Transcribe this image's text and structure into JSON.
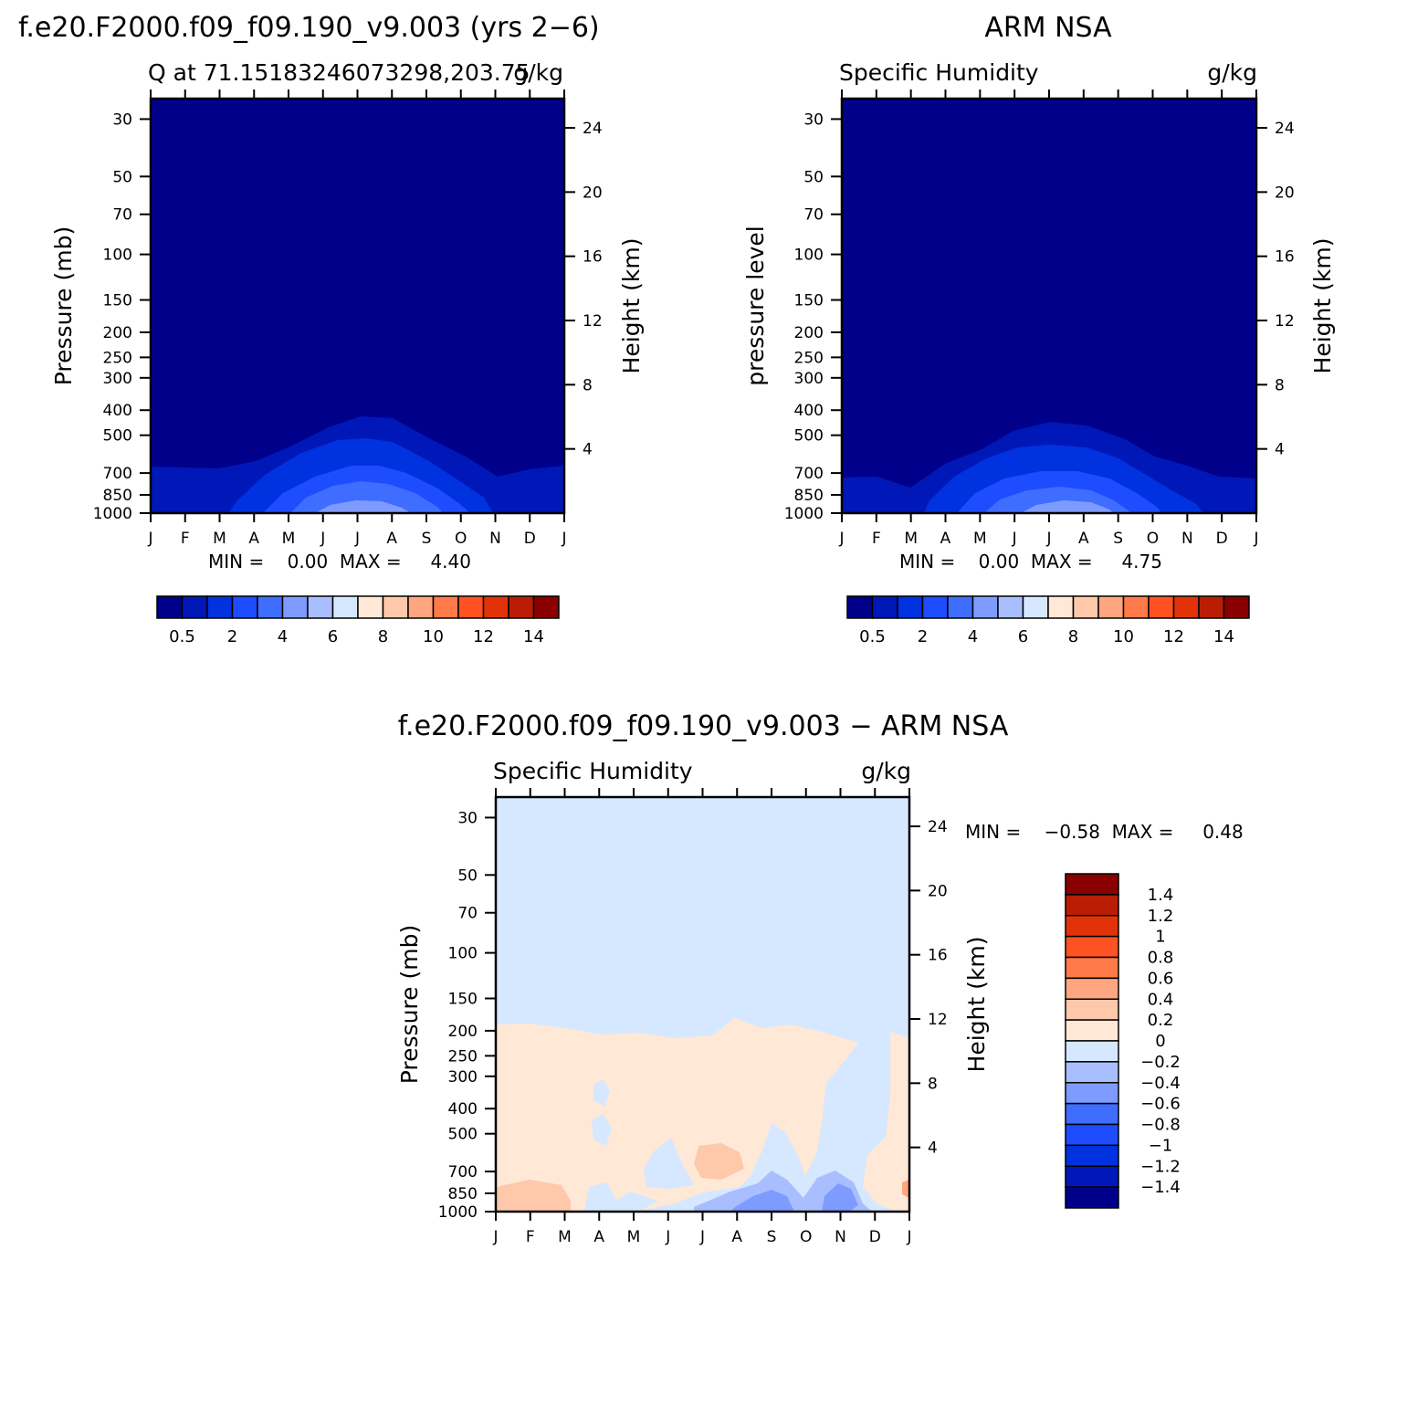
{
  "charts": [
    {
      "id": "model",
      "title": "f.e20.F2000.f09_f09.190_v9.003 (yrs 2−6)",
      "left_label": "Q at 71.15183246073298,203.75",
      "right_label": "g/kg",
      "ylabel": "Pressure (mb)",
      "y2label": "Height (km)",
      "stats_text": "MIN =    0.00  MAX =     4.40"
    },
    {
      "id": "obs",
      "title": "ARM NSA",
      "left_label": "Specific Humidity",
      "right_label": "g/kg",
      "ylabel": "pressure level",
      "y2label": "Height (km)",
      "stats_text": "MIN =    0.00  MAX =     4.75"
    },
    {
      "id": "diff",
      "title": "f.e20.F2000.f09_f09.190_v9.003 − ARM NSA",
      "left_label": "Specific Humidity",
      "right_label": "g/kg",
      "ylabel": "Pressure (mb)",
      "y2label": "Height (km)",
      "stats_text": "MIN =    −0.58  MAX =     0.48"
    }
  ],
  "chart_data": [
    {
      "type": "heatmap",
      "x_tick_labels": [
        "J",
        "F",
        "M",
        "A",
        "M",
        "J",
        "J",
        "A",
        "S",
        "O",
        "N",
        "D",
        "J"
      ],
      "y_ticks": [
        30,
        50,
        70,
        100,
        150,
        200,
        250,
        300,
        400,
        500,
        700,
        850,
        1000
      ],
      "y2_ticks": [
        4,
        8,
        12,
        16,
        20,
        24
      ],
      "y_scale": "log",
      "ylim": [
        1000,
        25
      ],
      "y2lim": [
        0,
        25
      ],
      "value_min": 0.0,
      "value_max": 4.4,
      "contour_levels": [
        0.5,
        1,
        2,
        3,
        4,
        5,
        6,
        7,
        8,
        9,
        10,
        11,
        12,
        13,
        14
      ],
      "colorbar_labels": [
        "0.5",
        "2",
        "4",
        "6",
        "8",
        "10",
        "12",
        "14"
      ],
      "colorbar_colors": [
        "#00008a",
        "#0018b8",
        "#0032e0",
        "#1e4cff",
        "#3f6dff",
        "#7e9bff",
        "#a9beff",
        "#d5e8ff",
        "#ffe8d6",
        "#ffc8aa",
        "#ffa57f",
        "#ff7a48",
        "#ff5222",
        "#e23308",
        "#bb1d04",
        "#8a0000"
      ]
    },
    {
      "type": "heatmap",
      "x_tick_labels": [
        "J",
        "F",
        "M",
        "A",
        "M",
        "J",
        "J",
        "A",
        "S",
        "O",
        "N",
        "D",
        "J"
      ],
      "y_ticks": [
        30,
        50,
        70,
        100,
        150,
        200,
        250,
        300,
        400,
        500,
        700,
        850,
        1000
      ],
      "y2_ticks": [
        4,
        8,
        12,
        16,
        20,
        24
      ],
      "y_scale": "log",
      "ylim": [
        1000,
        25
      ],
      "y2lim": [
        0,
        25
      ],
      "value_min": 0.0,
      "value_max": 4.75,
      "contour_levels": [
        0.5,
        1,
        2,
        3,
        4,
        5,
        6,
        7,
        8,
        9,
        10,
        11,
        12,
        13,
        14
      ],
      "colorbar_labels": [
        "0.5",
        "2",
        "4",
        "6",
        "8",
        "10",
        "12",
        "14"
      ],
      "colorbar_colors": [
        "#00008a",
        "#0018b8",
        "#0032e0",
        "#1e4cff",
        "#3f6dff",
        "#7e9bff",
        "#a9beff",
        "#d5e8ff",
        "#ffe8d6",
        "#ffc8aa",
        "#ffa57f",
        "#ff7a48",
        "#ff5222",
        "#e23308",
        "#bb1d04",
        "#8a0000"
      ]
    },
    {
      "type": "heatmap",
      "x_tick_labels": [
        "J",
        "F",
        "M",
        "A",
        "M",
        "J",
        "J",
        "A",
        "S",
        "O",
        "N",
        "D",
        "J"
      ],
      "y_ticks": [
        30,
        50,
        70,
        100,
        150,
        200,
        250,
        300,
        400,
        500,
        700,
        850,
        1000
      ],
      "y2_ticks": [
        4,
        8,
        12,
        16,
        20,
        24
      ],
      "y_scale": "log",
      "ylim": [
        1000,
        25
      ],
      "y2lim": [
        0,
        25
      ],
      "value_min": -0.58,
      "value_max": 0.48,
      "contour_levels": [
        -1.4,
        -1.2,
        -1,
        -0.8,
        -0.6,
        -0.4,
        -0.2,
        0,
        0.2,
        0.4,
        0.6,
        0.8,
        1,
        1.2,
        1.4
      ],
      "colorbar_labels": [
        "1.4",
        "1.2",
        "1",
        "0.8",
        "0.6",
        "0.4",
        "0.2",
        "0",
        "−0.2",
        "−0.4",
        "−0.6",
        "−0.8",
        "−1",
        "−1.2",
        "−1.4"
      ],
      "colorbar_colors": [
        "#8a0000",
        "#bb1d04",
        "#e23308",
        "#ff5222",
        "#ff7a48",
        "#ffa57f",
        "#ffc8aa",
        "#ffe8d6",
        "#d5e8ff",
        "#a9beff",
        "#7e9bff",
        "#3f6dff",
        "#1e4cff",
        "#0032e0",
        "#0018b8",
        "#00008a"
      ]
    }
  ]
}
